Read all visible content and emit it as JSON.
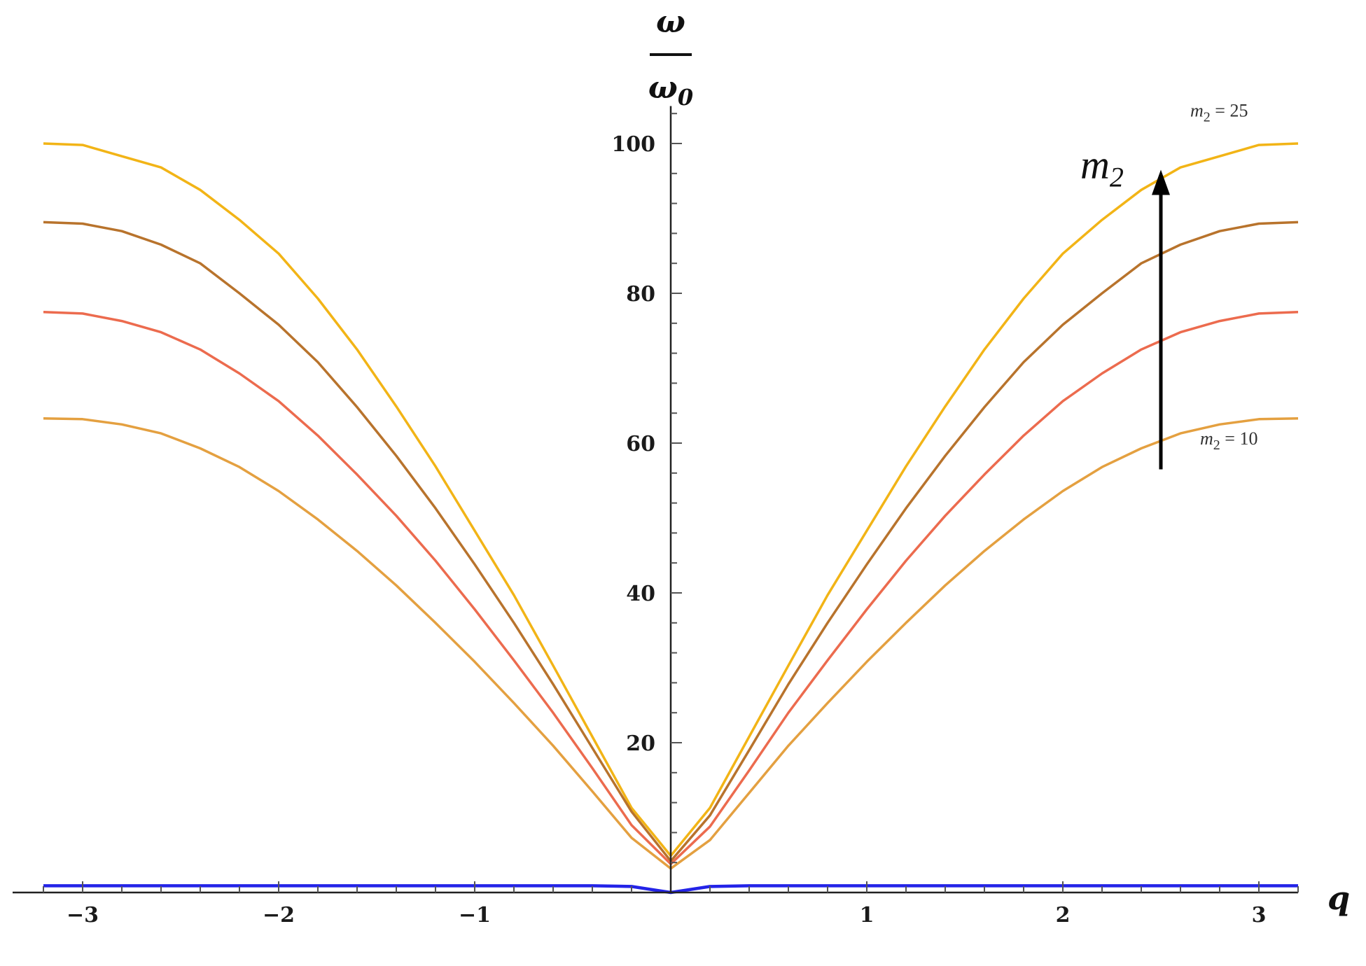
{
  "chart_data": {
    "type": "line",
    "title": "",
    "xlabel": "q",
    "ylabel": {
      "numerator": "ω",
      "denominator": "ω",
      "denominator_sub": "0"
    },
    "xlim": [
      -3.2,
      3.2
    ],
    "ylim": [
      0,
      105
    ],
    "x_ticks": [
      {
        "value": -3,
        "label": "−3"
      },
      {
        "value": -2,
        "label": "−2"
      },
      {
        "value": -1,
        "label": "−1"
      },
      {
        "value": 1,
        "label": "1"
      },
      {
        "value": 2,
        "label": "2"
      },
      {
        "value": 3,
        "label": "3"
      }
    ],
    "y_ticks": [
      {
        "value": 20,
        "label": "20"
      },
      {
        "value": 40,
        "label": "40"
      },
      {
        "value": 60,
        "label": "60"
      },
      {
        "value": 80,
        "label": "80"
      },
      {
        "value": 100,
        "label": "100"
      }
    ],
    "grid": false,
    "x": [
      -3.2,
      -3.0,
      -2.8,
      -2.6,
      -2.4,
      -2.2,
      -2.0,
      -1.8,
      -1.6,
      -1.4,
      -1.2,
      -1.0,
      -0.8,
      -0.6,
      -0.4,
      -0.2,
      0.0,
      0.2,
      0.4,
      0.6,
      0.8,
      1.0,
      1.2,
      1.4,
      1.6,
      1.8,
      2.0,
      2.2,
      2.4,
      2.6,
      2.8,
      3.0,
      3.2
    ],
    "series": [
      {
        "color": "#f2b416",
        "values": [
          100,
          99.8,
          98.3,
          96.8,
          93.8,
          89.8,
          85.3,
          79.3,
          72.5,
          64.9,
          56.9,
          48.3,
          39.7,
          30.3,
          20.8,
          11.3,
          4.9,
          11.3,
          20.8,
          30.3,
          39.7,
          48.3,
          56.9,
          64.9,
          72.5,
          79.3,
          85.3,
          89.8,
          93.8,
          96.8,
          98.3,
          99.8,
          100
        ]
      },
      {
        "color": "#b8732c",
        "values": [
          89.5,
          89.3,
          88.3,
          86.5,
          84.0,
          80.0,
          75.8,
          70.8,
          64.8,
          58.3,
          51.3,
          43.8,
          36.0,
          27.8,
          19.3,
          10.8,
          4.2,
          10.3,
          19.0,
          27.8,
          36.0,
          43.8,
          51.3,
          58.3,
          64.8,
          70.8,
          75.8,
          80.0,
          84.0,
          86.5,
          88.3,
          89.3,
          89.5
        ]
      },
      {
        "color": "#ec6b4e",
        "values": [
          77.5,
          77.3,
          76.3,
          74.8,
          72.5,
          69.3,
          65.6,
          61.0,
          55.8,
          50.3,
          44.3,
          37.8,
          31.0,
          24.0,
          16.6,
          9.0,
          3.8,
          8.8,
          16.3,
          24.0,
          31.0,
          37.8,
          44.3,
          50.3,
          55.8,
          61.0,
          65.6,
          69.3,
          72.5,
          74.8,
          76.3,
          77.3,
          77.5
        ]
      },
      {
        "color": "#e4a040",
        "values": [
          63.3,
          63.2,
          62.5,
          61.3,
          59.3,
          56.8,
          53.6,
          49.8,
          45.6,
          41.0,
          36.0,
          30.8,
          25.3,
          19.6,
          13.5,
          7.3,
          3.2,
          7.0,
          13.3,
          19.6,
          25.3,
          30.8,
          36.0,
          41.0,
          45.6,
          49.8,
          53.6,
          56.8,
          59.3,
          61.3,
          62.5,
          63.2,
          63.3
        ]
      },
      {
        "color": "#2323e8",
        "values": [
          0.9,
          0.9,
          0.9,
          0.9,
          0.9,
          0.9,
          0.9,
          0.9,
          0.9,
          0.9,
          0.9,
          0.9,
          0.9,
          0.9,
          0.9,
          0.8,
          0.0,
          0.8,
          0.9,
          0.9,
          0.9,
          0.9,
          0.9,
          0.9,
          0.9,
          0.9,
          0.9,
          0.9,
          0.9,
          0.9,
          0.9,
          0.9,
          0.9
        ]
      }
    ],
    "annotations": {
      "arrow_label": {
        "base": "m",
        "sub": "2"
      },
      "arrow": {
        "x": 2.5,
        "y_from": 56.5,
        "y_to": 96.5
      },
      "top_label": {
        "text_m": "m",
        "text_sub": "2",
        "text_rest": " = 25"
      },
      "bottom_label": {
        "text_m": "m",
        "text_sub": "2",
        "text_rest": " = 10"
      }
    }
  }
}
